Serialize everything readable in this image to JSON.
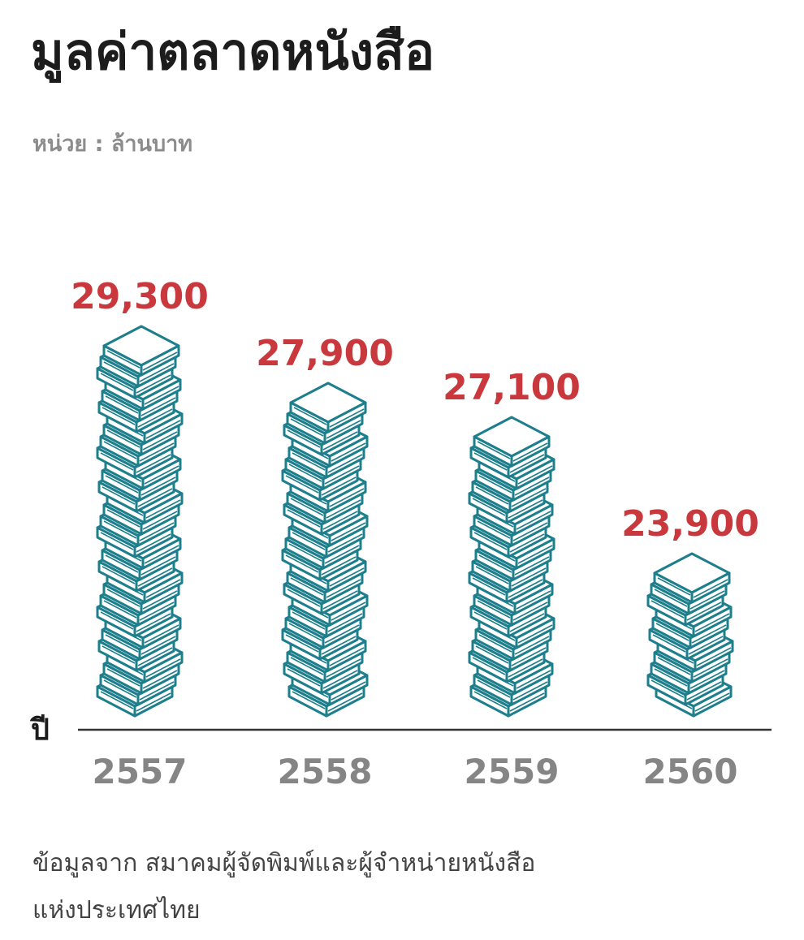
{
  "title": "มูลค่าตลาดหนังสือ",
  "unit_label": "หน่วย : ล้านบาท",
  "source": {
    "line1": "ข้อมูลจาก  สมาคมผู้จัดพิมพ์และผู้จำหน่ายหนังสือ",
    "line2": "แห่งประเทศไทย"
  },
  "colors": {
    "value_label": "#c8383d",
    "book_stroke": "#1d7e8c",
    "axis": "#333333",
    "tick_label": "#858585",
    "title": "#1c1c1c"
  },
  "chart_data": {
    "type": "bar",
    "title": "มูลค่าตลาดหนังสือ",
    "ylabel": "หน่วย : ล้านบาท",
    "xlabel": "ปี",
    "categories": [
      "2557",
      "2558",
      "2559",
      "2560"
    ],
    "value_labels": [
      "29,300",
      "27,900",
      "27,100",
      "23,900"
    ],
    "values": [
      29300,
      27900,
      27100,
      23900
    ],
    "ylim": [
      21000,
      30000
    ],
    "marks": "stacked-book-icons",
    "grid": false,
    "legend": "none"
  }
}
